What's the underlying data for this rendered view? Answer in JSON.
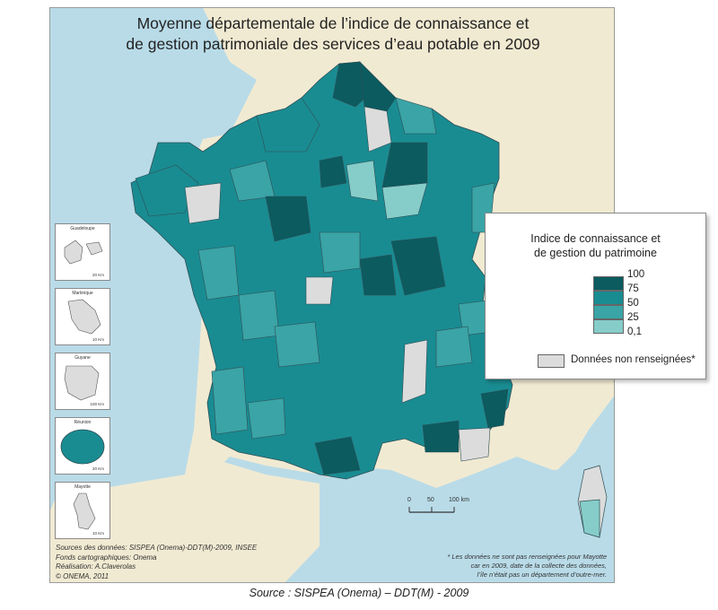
{
  "title_lines": [
    "Moyenne départementale de l’indice de connaissance et",
    "de gestion patrimoniale des services d’eau potable en 2009"
  ],
  "legend": {
    "title_lines": [
      "Indice de connaissance et",
      "de gestion du patrimoine"
    ],
    "classes": [
      {
        "color": "#0b5b5f"
      },
      {
        "color": "#198c92"
      },
      {
        "color": "#3aa4a6"
      },
      {
        "color": "#86cdc9"
      }
    ],
    "ticks": [
      "100",
      "75",
      "50",
      "25",
      "0,1"
    ],
    "no_data": {
      "label": "Données non renseignées*",
      "color": "#dcdcdc"
    }
  },
  "insets": [
    {
      "name": "Guadeloupe",
      "scale": "20 Km"
    },
    {
      "name": "Martinique",
      "scale": "10 Km"
    },
    {
      "name": "Guyane",
      "scale": "100 Km"
    },
    {
      "name": "Réunion",
      "scale": "20 Km"
    },
    {
      "name": "Mayotte",
      "scale": "10 Km"
    }
  ],
  "scale_labels": [
    "0",
    "50",
    "100 km"
  ],
  "credits": [
    "Sources des données: SISPEA (Onema)-DDT(M)-2009, INSEE",
    "Fonds cartographiques: Onema",
    "Réalisation: A.Claverolas",
    "© ONEMA, 2011"
  ],
  "footnote": [
    "* Les données ne sont pas renseignées pour Mayotte",
    "car en 2009, date de la collecte des données,",
    "l’île n’était pas un département d’outre-mer."
  ],
  "source": "Source : SISPEA (Onema) – DDT(M) - 2009",
  "colors": {
    "sea": "#b9dbe8",
    "land": "#f1ead2",
    "border": "#2f4f55"
  }
}
